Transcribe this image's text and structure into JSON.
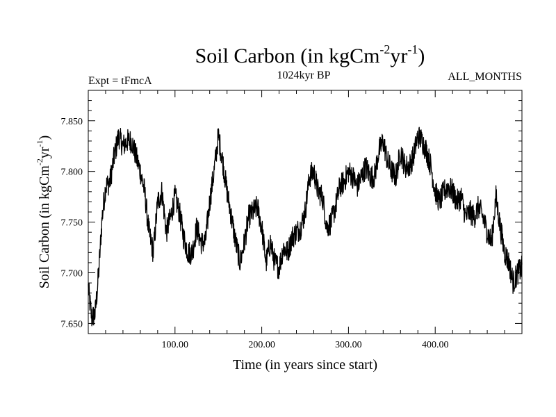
{
  "chart_data": {
    "type": "line",
    "title": {
      "main": "Soil Carbon (in kgCm",
      "sup1": "-2",
      "mid": "yr",
      "sup2": "-1",
      "end": ")"
    },
    "subtitle_left": "Expt = tFmcA",
    "subtitle_center": "1024kyr BP",
    "subtitle_right": "ALL_MONTHS",
    "xlabel": "Time (in years since start)",
    "ylabel": {
      "main": "Soil Carbon (in kgCm",
      "sup1": "-2",
      "mid": "yr",
      "sup2": "-1",
      "end": ")"
    },
    "xlim": [
      0,
      500
    ],
    "ylim": [
      7.64,
      7.88
    ],
    "x_ticks": [
      100,
      200,
      300,
      400
    ],
    "x_tick_labels": [
      "100.00",
      "200.00",
      "300.00",
      "400.00"
    ],
    "y_ticks": [
      7.65,
      7.7,
      7.75,
      7.8,
      7.85
    ],
    "y_tick_labels": [
      "7.650",
      "7.700",
      "7.750",
      "7.800",
      "7.850"
    ],
    "series": [
      {
        "name": "Soil Carbon",
        "color": "#000000",
        "noise_amplitude": 0.012,
        "x": [
          0,
          4,
          8,
          12,
          16,
          20,
          25,
          30,
          35,
          40,
          45,
          50,
          55,
          60,
          65,
          70,
          75,
          80,
          85,
          90,
          95,
          100,
          105,
          110,
          115,
          120,
          125,
          130,
          135,
          140,
          145,
          150,
          155,
          160,
          165,
          170,
          175,
          180,
          185,
          190,
          195,
          200,
          205,
          210,
          215,
          220,
          225,
          230,
          235,
          240,
          245,
          250,
          255,
          260,
          265,
          270,
          275,
          280,
          285,
          290,
          295,
          300,
          305,
          310,
          315,
          320,
          325,
          330,
          335,
          340,
          345,
          350,
          355,
          360,
          365,
          370,
          375,
          380,
          385,
          390,
          395,
          400,
          405,
          410,
          415,
          420,
          425,
          430,
          435,
          440,
          445,
          450,
          455,
          460,
          465,
          470,
          475,
          480,
          485,
          490,
          495,
          500
        ],
        "y": [
          7.685,
          7.655,
          7.66,
          7.7,
          7.755,
          7.785,
          7.79,
          7.815,
          7.835,
          7.825,
          7.83,
          7.83,
          7.815,
          7.8,
          7.78,
          7.74,
          7.72,
          7.77,
          7.78,
          7.74,
          7.755,
          7.775,
          7.76,
          7.735,
          7.72,
          7.72,
          7.745,
          7.73,
          7.73,
          7.77,
          7.8,
          7.835,
          7.81,
          7.78,
          7.755,
          7.73,
          7.71,
          7.73,
          7.755,
          7.76,
          7.765,
          7.745,
          7.71,
          7.73,
          7.71,
          7.705,
          7.725,
          7.72,
          7.735,
          7.74,
          7.745,
          7.76,
          7.795,
          7.8,
          7.78,
          7.775,
          7.745,
          7.75,
          7.765,
          7.785,
          7.79,
          7.8,
          7.795,
          7.785,
          7.795,
          7.805,
          7.795,
          7.795,
          7.82,
          7.83,
          7.81,
          7.8,
          7.795,
          7.82,
          7.805,
          7.805,
          7.815,
          7.835,
          7.83,
          7.82,
          7.805,
          7.78,
          7.77,
          7.78,
          7.785,
          7.78,
          7.77,
          7.775,
          7.755,
          7.76,
          7.755,
          7.765,
          7.755,
          7.74,
          7.73,
          7.775,
          7.745,
          7.72,
          7.71,
          7.69,
          7.7,
          7.705
        ]
      }
    ]
  }
}
